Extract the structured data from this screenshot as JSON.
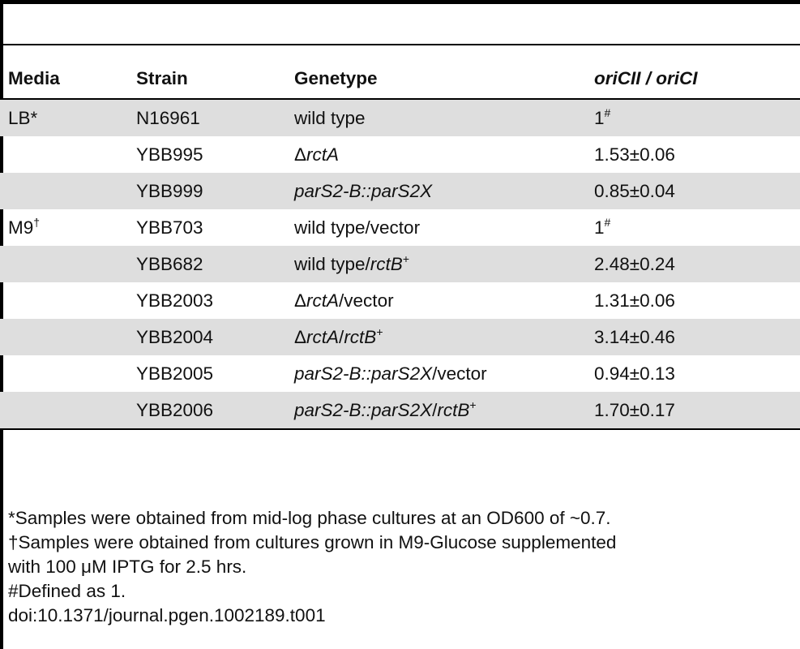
{
  "columns": [
    "Media",
    "Strain",
    "Genetype",
    "oriCII / oriCI"
  ],
  "rows": [
    {
      "media": "LB*",
      "strain": "N16961",
      "geno": [
        {
          "t": "wild type",
          "i": false
        }
      ],
      "ratio": "1",
      "ratio_sup": "#",
      "shaded": true
    },
    {
      "media": "",
      "strain": "YBB995",
      "geno": [
        {
          "t": "Δ",
          "i": false
        },
        {
          "t": "rctA",
          "i": true
        }
      ],
      "ratio": "1.53±0.06",
      "ratio_sup": "",
      "shaded": false
    },
    {
      "media": "",
      "strain": "YBB999",
      "geno": [
        {
          "t": "parS2-B::parS2X",
          "i": true
        }
      ],
      "ratio": "0.85±0.04",
      "ratio_sup": "",
      "shaded": true
    },
    {
      "media": "M9",
      "media_sup": "†",
      "strain": "YBB703",
      "geno": [
        {
          "t": "wild type/vector",
          "i": false
        }
      ],
      "ratio": "1",
      "ratio_sup": "#",
      "shaded": false
    },
    {
      "media": "",
      "strain": "YBB682",
      "geno": [
        {
          "t": "wild type/",
          "i": false
        },
        {
          "t": "rctB",
          "i": true
        },
        {
          "t": "+",
          "sup": true
        }
      ],
      "ratio": "2.48±0.24",
      "ratio_sup": "",
      "shaded": true
    },
    {
      "media": "",
      "strain": "YBB2003",
      "geno": [
        {
          "t": "Δ",
          "i": false
        },
        {
          "t": "rctA",
          "i": true
        },
        {
          "t": "/vector",
          "i": false
        }
      ],
      "ratio": "1.31±0.06",
      "ratio_sup": "",
      "shaded": false
    },
    {
      "media": "",
      "strain": "YBB2004",
      "geno": [
        {
          "t": "Δ",
          "i": false
        },
        {
          "t": "rctA",
          "i": true
        },
        {
          "t": "/",
          "i": false
        },
        {
          "t": "rctB",
          "i": true
        },
        {
          "t": "+",
          "sup": true
        }
      ],
      "ratio": "3.14±0.46",
      "ratio_sup": "",
      "shaded": true
    },
    {
      "media": "",
      "strain": "YBB2005",
      "geno": [
        {
          "t": "parS2-B::parS2X",
          "i": true
        },
        {
          "t": "/vector",
          "i": false
        }
      ],
      "ratio": "0.94±0.13",
      "ratio_sup": "",
      "shaded": false
    },
    {
      "media": "",
      "strain": "YBB2006",
      "geno": [
        {
          "t": "parS2-B::parS2X",
          "i": true
        },
        {
          "t": "/",
          "i": false
        },
        {
          "t": "rctB",
          "i": true
        },
        {
          "t": "+",
          "sup": true
        }
      ],
      "ratio": "1.70±0.17",
      "ratio_sup": "",
      "shaded": true
    }
  ],
  "footnotes": [
    "*Samples were obtained from mid-log phase cultures at an OD600 of ~0.7.",
    "†Samples were obtained from cultures grown in M9-Glucose supplemented",
    "with 100 μM IPTG for 2.5 hrs.",
    "#Defined as 1.",
    "doi:10.1371/journal.pgen.1002189.t001"
  ]
}
